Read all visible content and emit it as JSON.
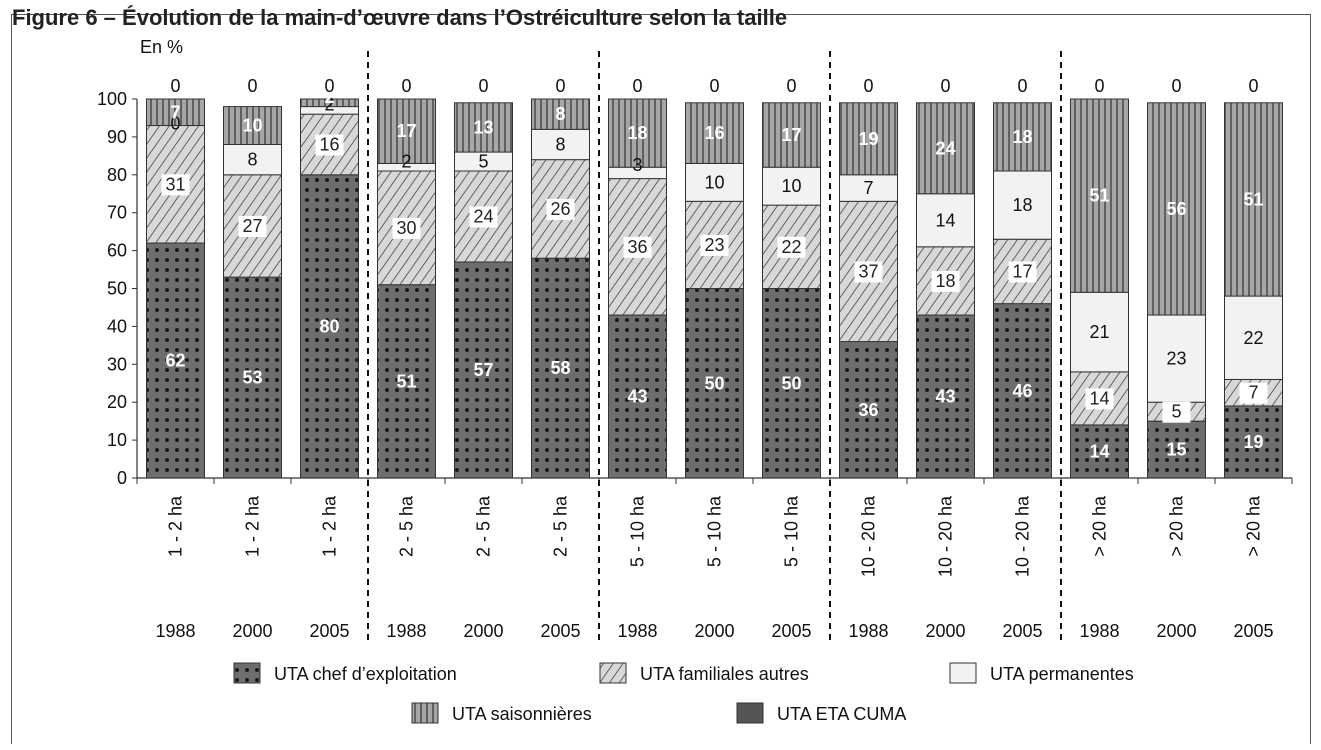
{
  "title": "Figure 6 – Évolution de la main-d’œuvre dans l’Ostréiculture selon la taille",
  "chart_data": {
    "type": "bar",
    "stacked": true,
    "ylabel": "En %",
    "ylim": [
      0,
      100
    ],
    "yticks": [
      0,
      10,
      20,
      30,
      40,
      50,
      60,
      70,
      80,
      90,
      100
    ],
    "categories": [
      "1 - 2 ha",
      "1 - 2 ha",
      "1 - 2 ha",
      "2 - 5 ha",
      "2 - 5 ha",
      "2 - 5 ha",
      "5 - 10 ha",
      "5 - 10 ha",
      "5 - 10 ha",
      "10 - 20 ha",
      "10 - 20 ha",
      "10 - 20 ha",
      "> 20 ha",
      "> 20 ha",
      "> 20 ha"
    ],
    "years": [
      "1988",
      "2000",
      "2005",
      "1988",
      "2000",
      "2005",
      "1988",
      "2000",
      "2005",
      "1988",
      "2000",
      "2005",
      "1988",
      "2000",
      "2005"
    ],
    "series": [
      {
        "name": "UTA chef d’exploitation",
        "pattern": "dots",
        "values": [
          62,
          53,
          80,
          51,
          57,
          58,
          43,
          50,
          50,
          36,
          43,
          46,
          14,
          15,
          19
        ]
      },
      {
        "name": "UTA familiales autres",
        "pattern": "hatch",
        "values": [
          31,
          27,
          16,
          30,
          24,
          26,
          36,
          23,
          22,
          37,
          18,
          17,
          14,
          5,
          7
        ]
      },
      {
        "name": "UTA permanentes",
        "pattern": "plain",
        "values": [
          0,
          8,
          2,
          2,
          5,
          8,
          3,
          10,
          10,
          7,
          14,
          18,
          21,
          23,
          22
        ]
      },
      {
        "name": "UTA saisonnières",
        "pattern": "vlines",
        "values": [
          7,
          10,
          2,
          17,
          13,
          8,
          18,
          16,
          17,
          19,
          24,
          18,
          51,
          56,
          51
        ]
      },
      {
        "name": "UTA ETA CUMA",
        "pattern": "solid",
        "values": [
          0,
          0,
          0,
          0,
          0,
          0,
          0,
          0,
          0,
          0,
          0,
          0,
          0,
          0,
          0
        ]
      }
    ],
    "group_separators_after": [
      3,
      6,
      9,
      12
    ],
    "legend_position": "bottom",
    "grid": false
  }
}
